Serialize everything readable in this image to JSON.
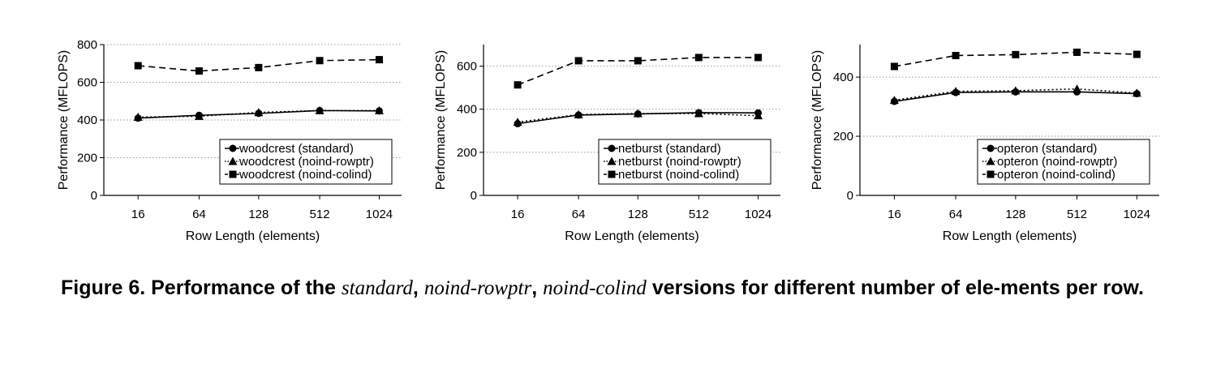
{
  "chart_data": [
    {
      "type": "line",
      "categories": [
        "16",
        "64",
        "128",
        "512",
        "1024"
      ],
      "xlabel": "Row Length (elements)",
      "ylabel": "Performance (MFLOPS)",
      "ylim": [
        0,
        800
      ],
      "yticks": [
        0,
        200,
        400,
        600,
        800
      ],
      "grid": "horizontal dotted",
      "legend_position": "bottom-right",
      "series": [
        {
          "name": "woodcrest (standard)",
          "style": "solid",
          "marker": "circle",
          "values": [
            410,
            425,
            435,
            450,
            448
          ]
        },
        {
          "name": "woodcrest (noind-rowptr)",
          "style": "dotted",
          "marker": "triangle",
          "values": [
            415,
            420,
            440,
            450,
            450
          ]
        },
        {
          "name": "woodcrest (noind-colind)",
          "style": "dashed",
          "marker": "square",
          "values": [
            688,
            660,
            678,
            715,
            720
          ]
        }
      ]
    },
    {
      "type": "line",
      "categories": [
        "16",
        "64",
        "128",
        "512",
        "1024"
      ],
      "xlabel": "Row Length (elements)",
      "ylabel": "Performance (MFLOPS)",
      "ylim": [
        0,
        700
      ],
      "yticks": [
        0,
        200,
        400,
        600
      ],
      "grid": "horizontal dotted",
      "legend_position": "bottom-right",
      "series": [
        {
          "name": "netburst (standard)",
          "style": "solid",
          "marker": "circle",
          "values": [
            333,
            373,
            378,
            384,
            383
          ]
        },
        {
          "name": "netburst (noind-rowptr)",
          "style": "dotted",
          "marker": "triangle",
          "values": [
            340,
            375,
            380,
            380,
            370
          ]
        },
        {
          "name": "netburst (noind-colind)",
          "style": "dashed",
          "marker": "square",
          "values": [
            513,
            625,
            625,
            640,
            640
          ]
        }
      ]
    },
    {
      "type": "line",
      "categories": [
        "16",
        "64",
        "128",
        "512",
        "1024"
      ],
      "xlabel": "Row Length (elements)",
      "ylabel": "Performance (MFLOPS)",
      "ylim": [
        0,
        510
      ],
      "yticks": [
        0,
        200,
        400
      ],
      "grid": "horizontal dotted",
      "legend_position": "bottom-right",
      "series": [
        {
          "name": "opteron (standard)",
          "style": "solid",
          "marker": "circle",
          "values": [
            318,
            348,
            350,
            350,
            344
          ]
        },
        {
          "name": "opteron (noind-rowptr)",
          "style": "dotted",
          "marker": "triangle",
          "values": [
            322,
            352,
            354,
            360,
            346
          ]
        },
        {
          "name": "opteron (noind-colind)",
          "style": "dashed",
          "marker": "square",
          "values": [
            436,
            473,
            476,
            484,
            477
          ]
        }
      ]
    }
  ],
  "caption": {
    "part1": "Figure 6. Performance of the ",
    "standard": "standard",
    "comma1": ", ",
    "rowptr": "noind-rowptr",
    "comma2": ", ",
    "colind": "noind-colind",
    "part2": " versions for different number of ele-ments per row."
  }
}
